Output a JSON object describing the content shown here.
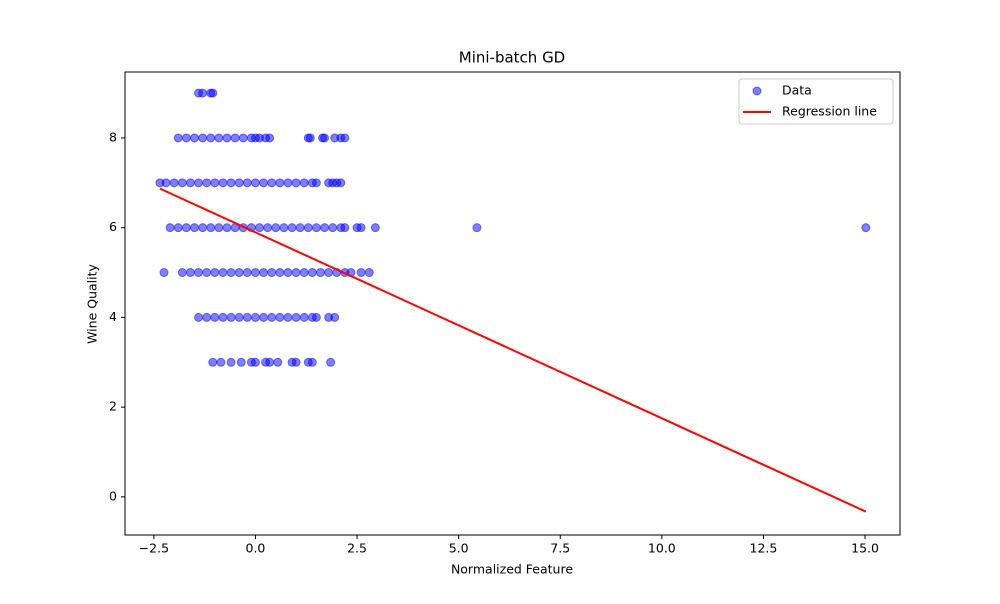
{
  "chart_data": {
    "type": "scatter",
    "title": "Mini-batch GD",
    "xlabel": "Normalized Feature",
    "ylabel": "Wine Quality",
    "xlim": [
      -3.21,
      15.86
    ],
    "ylim": [
      -0.85,
      9.47
    ],
    "xticks": [
      {
        "value": -2.5,
        "label": "−2.5"
      },
      {
        "value": 0,
        "label": "0.0"
      },
      2.5,
      {
        "value": 5,
        "label": "5.0"
      },
      7.5,
      {
        "value": 10,
        "label": "10.0"
      },
      12.5,
      {
        "value": 15,
        "label": "15.0"
      }
    ],
    "yticks": [
      0,
      2,
      4,
      6,
      8
    ],
    "legend": "upper right",
    "series": [
      {
        "name": "Data",
        "type": "scatter",
        "color": "#0000ff",
        "x": [
          -1.4,
          -1.3,
          -1.1,
          -1.05,
          -1.9,
          -1.7,
          -1.5,
          -1.3,
          -1.1,
          -0.9,
          -0.7,
          -0.5,
          -0.3,
          -0.1,
          0.0,
          0.1,
          0.25,
          0.35,
          1.3,
          1.35,
          1.65,
          1.7,
          1.95,
          2.1,
          2.2,
          -2.35,
          -2.2,
          -2.0,
          -1.8,
          -1.6,
          -1.4,
          -1.2,
          -1.0,
          -0.8,
          -0.6,
          -0.4,
          -0.2,
          0.0,
          0.2,
          0.4,
          0.6,
          0.8,
          1.0,
          1.2,
          1.4,
          1.5,
          1.8,
          1.9,
          2.0,
          2.1,
          -2.1,
          -1.9,
          -1.7,
          -1.5,
          -1.3,
          -1.1,
          -0.9,
          -0.7,
          -0.5,
          -0.3,
          -0.1,
          0.1,
          0.3,
          0.5,
          0.7,
          0.9,
          1.1,
          1.3,
          1.5,
          1.7,
          1.9,
          2.1,
          2.2,
          2.5,
          2.6,
          2.95,
          5.45,
          15.02,
          -2.25,
          -1.8,
          -1.6,
          -1.4,
          -1.2,
          -1.0,
          -0.8,
          -0.6,
          -0.4,
          -0.2,
          0.0,
          0.2,
          0.4,
          0.6,
          0.8,
          1.0,
          1.2,
          1.4,
          1.6,
          1.8,
          2.0,
          2.2,
          2.35,
          2.6,
          2.8,
          -1.4,
          -1.2,
          -1.0,
          -0.8,
          -0.6,
          -0.4,
          -0.2,
          0.0,
          0.2,
          0.4,
          0.6,
          0.8,
          1.0,
          1.2,
          1.4,
          1.5,
          1.8,
          1.95,
          -1.05,
          -0.85,
          -0.6,
          -0.35,
          -0.1,
          0.0,
          0.25,
          0.35,
          0.55,
          0.9,
          1.0,
          1.3,
          1.4,
          1.85
        ],
        "values": [
          9,
          9,
          9,
          9,
          8,
          8,
          8,
          8,
          8,
          8,
          8,
          8,
          8,
          8,
          8,
          8,
          8,
          8,
          8,
          8,
          8,
          8,
          8,
          8,
          8,
          7,
          7,
          7,
          7,
          7,
          7,
          7,
          7,
          7,
          7,
          7,
          7,
          7,
          7,
          7,
          7,
          7,
          7,
          7,
          7,
          7,
          7,
          7,
          7,
          7,
          6,
          6,
          6,
          6,
          6,
          6,
          6,
          6,
          6,
          6,
          6,
          6,
          6,
          6,
          6,
          6,
          6,
          6,
          6,
          6,
          6,
          6,
          6,
          6,
          6,
          6,
          6,
          6,
          5,
          5,
          5,
          5,
          5,
          5,
          5,
          5,
          5,
          5,
          5,
          5,
          5,
          5,
          5,
          5,
          5,
          5,
          5,
          5,
          5,
          5,
          5,
          5,
          5,
          4,
          4,
          4,
          4,
          4,
          4,
          4,
          4,
          4,
          4,
          4,
          4,
          4,
          4,
          4,
          4,
          4,
          4,
          3,
          3,
          3,
          3,
          3,
          3,
          3,
          3,
          3,
          3,
          3,
          3,
          3,
          3
        ]
      },
      {
        "name": "Regression line",
        "type": "line",
        "color": "#ff0000",
        "x": [
          -2.35,
          15.02
        ],
        "values": [
          6.87,
          -0.33
        ]
      }
    ]
  }
}
